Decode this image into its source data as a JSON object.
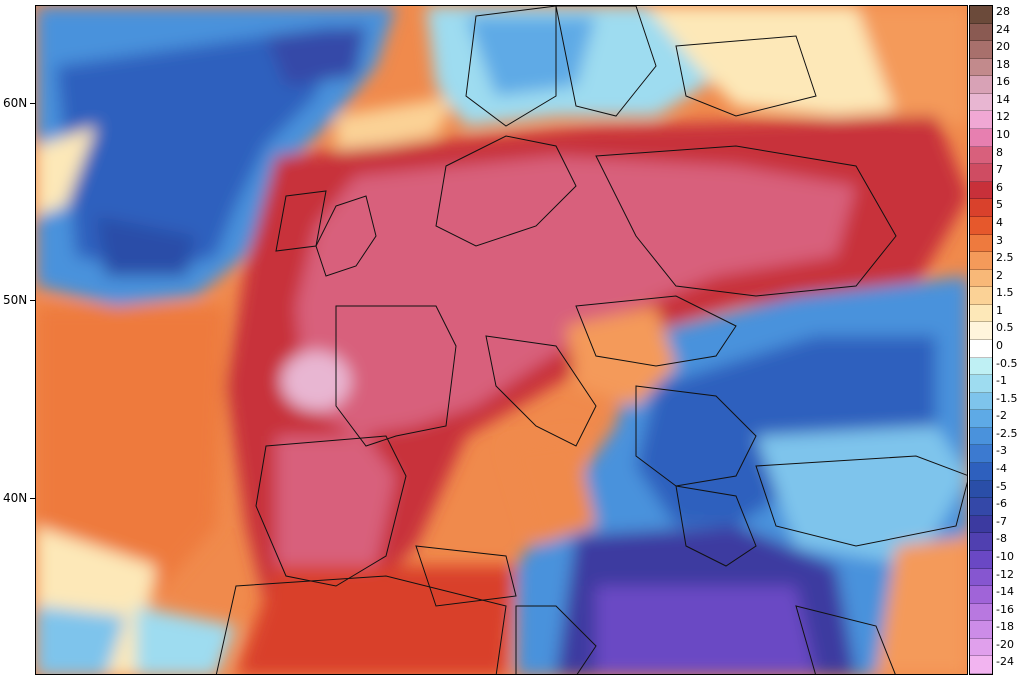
{
  "map": {
    "lat_labels": [
      "60N",
      "50N",
      "40N"
    ]
  },
  "legend": {
    "levels": [
      "28",
      "24",
      "20",
      "18",
      "16",
      "14",
      "12",
      "10",
      "8",
      "7",
      "6",
      "5",
      "4",
      "3",
      "2.5",
      "2",
      "1.5",
      "1",
      "0.5",
      "0",
      "-0.5",
      "-1",
      "-1.5",
      "-2",
      "-2.5",
      "-3",
      "-4",
      "-5",
      "-6",
      "-7",
      "-8",
      "-10",
      "-12",
      "-14",
      "-16",
      "-18",
      "-20",
      "-24"
    ],
    "colors": [
      "#6b4a3a",
      "#8a5a52",
      "#a8706c",
      "#c28a8c",
      "#d8a2b6",
      "#e8b6d2",
      "#f0a8d4",
      "#e77fb0",
      "#d8607c",
      "#cf4c62",
      "#c8303a",
      "#d9412c",
      "#e6582c",
      "#ee7a3e",
      "#f49a5a",
      "#f8b878",
      "#fbd296",
      "#fde8b8",
      "#fff5dc",
      "#ffffff",
      "#bff0f4",
      "#9edcf0",
      "#7ec4ec",
      "#5eaae6",
      "#4a92dc",
      "#3c7ad0",
      "#2e60be",
      "#2a4ea8",
      "#3448a8",
      "#3c3aa0",
      "#5040b0",
      "#6a48c4",
      "#8656d0",
      "#a064d8",
      "#b878e0",
      "#cc8ce8",
      "#e0a0ec",
      "#f2b4f0"
    ]
  }
}
